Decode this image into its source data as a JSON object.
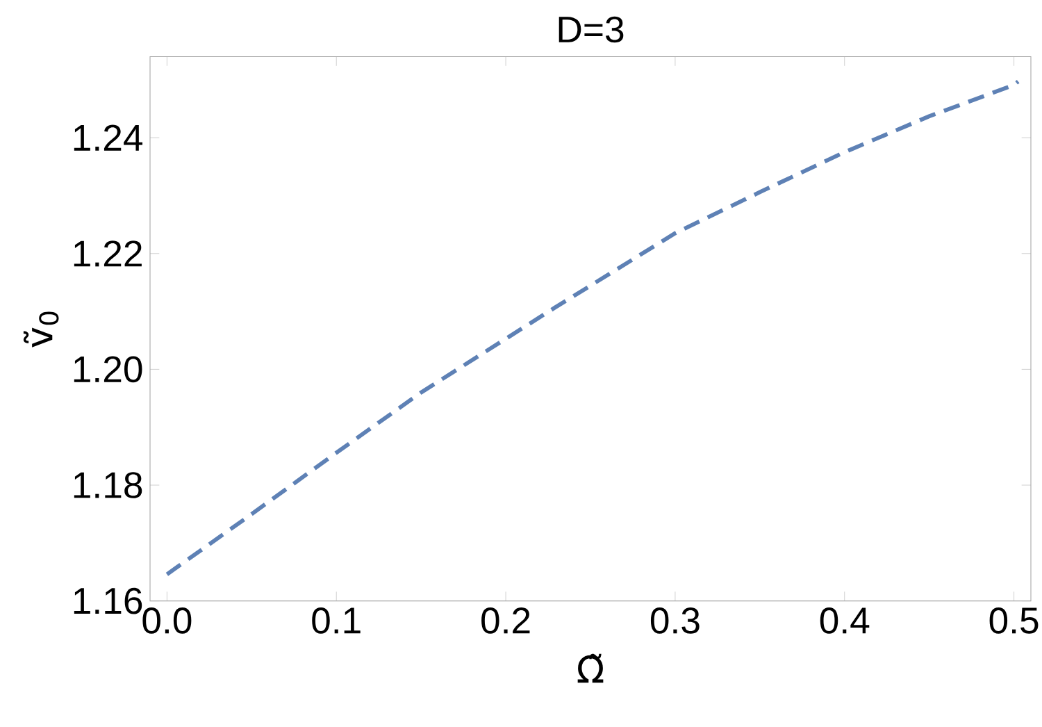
{
  "chart_data": {
    "type": "line",
    "title": "D=3",
    "xlabel": "Ω̃",
    "ylabel": "ṽ$_{0}$",
    "x": [
      0,
      0.05,
      0.1,
      0.15,
      0.2287,
      0.3,
      0.35,
      0.4,
      0.45,
      0.5,
      0.5025
    ],
    "series": [
      {
        "color": "#5e81b5",
        "values": [
          1.1646,
          1.175,
          1.1856,
          1.196,
          1.2106,
          1.2235,
          1.2306,
          1.2375,
          1.2437,
          1.2491,
          1.2497
        ]
      }
    ],
    "xlim": [
      -0.01,
      0.51
    ],
    "ylim": [
      1.16,
      1.254
    ],
    "xticks": [
      {
        "value": 0,
        "label": "0.0"
      },
      0.1,
      0.2,
      0.3,
      0.4,
      0.5
    ],
    "yticks": [
      1.16,
      1.18,
      {
        "value": 1.2,
        "label": "1.20"
      },
      1.22,
      1.24
    ],
    "grid": false,
    "marker": "none",
    "line_style": "dashed"
  }
}
